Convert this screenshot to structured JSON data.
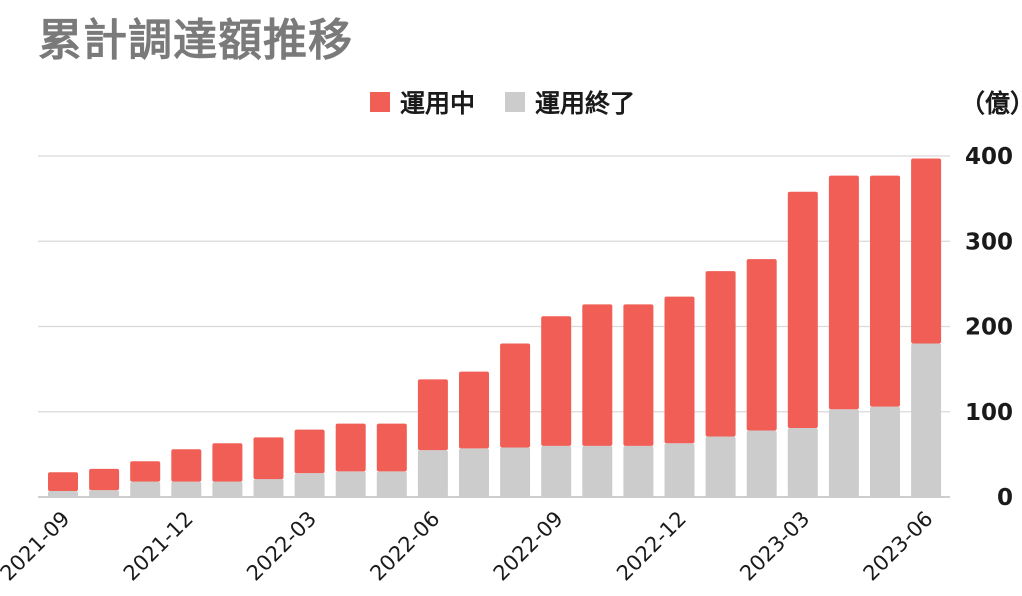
{
  "chart_data": {
    "type": "bar",
    "stacked": true,
    "title": "累計調達額推移",
    "unit_label": "（億）",
    "ylim": [
      0,
      400
    ],
    "yticks": [
      0,
      100,
      200,
      300,
      400
    ],
    "y_axis_side": "right",
    "grid": true,
    "legend_position": "top",
    "categories": [
      "2021-09",
      "2021-10",
      "2021-11",
      "2021-12",
      "2022-01",
      "2022-02",
      "2022-03",
      "2022-04",
      "2022-05",
      "2022-06",
      "2022-07",
      "2022-08",
      "2022-09",
      "2022-10",
      "2022-11",
      "2022-12",
      "2023-01",
      "2023-02",
      "2023-03",
      "2023-04",
      "2023-05",
      "2023-06"
    ],
    "xtick_labels": [
      "2021-09",
      "2021-12",
      "2022-03",
      "2022-06",
      "2022-09",
      "2022-12",
      "2023-03",
      "2023-06"
    ],
    "series": [
      {
        "name": "運用終了",
        "color": "#cccccc",
        "values": [
          7,
          8,
          18,
          18,
          18,
          21,
          28,
          30,
          30,
          55,
          57,
          58,
          60,
          60,
          60,
          63,
          71,
          78,
          81,
          103,
          106,
          180
        ]
      },
      {
        "name": "運用中",
        "color": "#f15e55",
        "values": [
          22,
          25,
          24,
          38,
          45,
          49,
          51,
          56,
          56,
          83,
          90,
          122,
          152,
          166,
          166,
          172,
          194,
          201,
          277,
          274,
          271,
          217
        ]
      }
    ],
    "legend_order": [
      "運用中",
      "運用終了"
    ]
  }
}
